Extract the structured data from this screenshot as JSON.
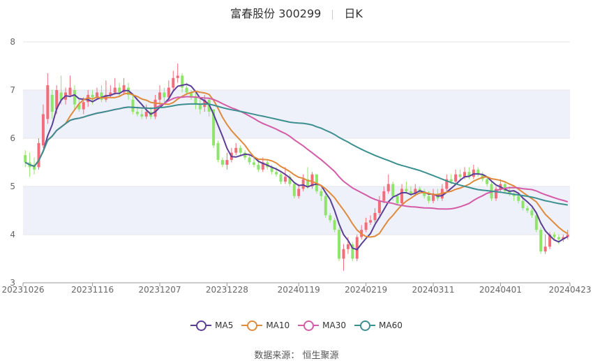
{
  "title": {
    "name": "富春股份 300299",
    "period": "日K"
  },
  "source": "数据来源：  恒生聚源",
  "legend": [
    {
      "label": "MA5",
      "color": "#5b3e96"
    },
    {
      "label": "MA10",
      "color": "#e08a3c"
    },
    {
      "label": "MA30",
      "color": "#d45ca6"
    },
    {
      "label": "MA60",
      "color": "#3c8f8f"
    }
  ],
  "colors": {
    "up": "#f26d78",
    "down": "#8fe56a",
    "band": "#eef0fa",
    "grid": "#e4e4ea"
  },
  "chart_data": {
    "type": "candlestick",
    "ylim": [
      3,
      8
    ],
    "yticks": [
      3,
      4,
      5,
      6,
      7,
      8
    ],
    "xticks": [
      {
        "label": "20231026",
        "index": 0
      },
      {
        "label": "20231116",
        "index": 15
      },
      {
        "label": "20231207",
        "index": 30
      },
      {
        "label": "20231228",
        "index": 45
      },
      {
        "label": "20240119",
        "index": 61
      },
      {
        "label": "20240219",
        "index": 76
      },
      {
        "label": "20240311",
        "index": 91
      },
      {
        "label": "20240401",
        "index": 106
      },
      {
        "label": "20240423",
        "index": 121
      }
    ],
    "candles": [
      [
        5.65,
        5.5,
        5.75,
        5.4
      ],
      [
        5.5,
        5.4,
        5.7,
        5.2
      ],
      [
        5.45,
        5.35,
        5.6,
        5.25
      ],
      [
        5.4,
        5.9,
        6.0,
        5.35
      ],
      [
        5.85,
        6.5,
        6.7,
        5.8
      ],
      [
        6.4,
        7.1,
        7.35,
        6.3
      ],
      [
        6.9,
        6.55,
        7.0,
        6.4
      ],
      [
        6.6,
        7.0,
        7.1,
        6.5
      ],
      [
        6.95,
        6.8,
        7.3,
        6.7
      ],
      [
        6.8,
        6.95,
        7.05,
        6.7
      ],
      [
        6.9,
        7.05,
        7.3,
        6.85
      ],
      [
        7.0,
        6.7,
        7.1,
        6.6
      ],
      [
        6.7,
        6.6,
        6.8,
        6.55
      ],
      [
        6.6,
        6.75,
        6.85,
        6.5
      ],
      [
        6.75,
        6.9,
        7.0,
        6.65
      ],
      [
        6.9,
        6.85,
        7.0,
        6.7
      ],
      [
        6.85,
        6.95,
        7.05,
        6.8
      ],
      [
        6.95,
        6.8,
        7.1,
        6.75
      ],
      [
        6.8,
        6.9,
        7.2,
        6.75
      ],
      [
        6.9,
        6.95,
        7.1,
        6.85
      ],
      [
        6.95,
        7.05,
        7.25,
        6.9
      ],
      [
        7.05,
        6.95,
        7.15,
        6.85
      ],
      [
        6.95,
        7.1,
        7.25,
        6.9
      ],
      [
        7.05,
        6.9,
        7.15,
        6.8
      ],
      [
        6.8,
        6.55,
        6.9,
        6.5
      ],
      [
        6.55,
        6.5,
        6.65,
        6.45
      ],
      [
        6.5,
        6.45,
        6.6,
        6.4
      ],
      [
        6.45,
        6.55,
        6.7,
        6.4
      ],
      [
        6.55,
        6.45,
        6.65,
        6.4
      ],
      [
        6.45,
        6.8,
        6.9,
        6.4
      ],
      [
        6.8,
        6.95,
        7.1,
        6.7
      ],
      [
        6.95,
        6.85,
        7.05,
        6.75
      ],
      [
        6.85,
        7.05,
        7.2,
        6.8
      ],
      [
        7.05,
        7.25,
        7.4,
        7.0
      ],
      [
        7.25,
        7.3,
        7.55,
        7.15
      ],
      [
        7.3,
        7.05,
        7.35,
        6.95
      ],
      [
        7.05,
        6.95,
        7.15,
        6.9
      ],
      [
        6.95,
        6.85,
        7.0,
        6.8
      ],
      [
        6.85,
        6.7,
        6.95,
        6.6
      ],
      [
        6.7,
        6.6,
        6.8,
        6.5
      ],
      [
        6.65,
        6.8,
        6.9,
        6.55
      ],
      [
        6.8,
        6.55,
        6.85,
        6.45
      ],
      [
        6.6,
        5.85,
        6.6,
        5.8
      ],
      [
        5.9,
        5.55,
        5.95,
        5.5
      ],
      [
        5.55,
        5.45,
        5.6,
        5.4
      ],
      [
        5.45,
        5.55,
        5.7,
        5.35
      ],
      [
        5.55,
        5.7,
        5.8,
        5.5
      ],
      [
        5.7,
        5.8,
        5.9,
        5.65
      ],
      [
        5.8,
        5.7,
        5.85,
        5.65
      ],
      [
        5.7,
        5.6,
        5.75,
        5.55
      ],
      [
        5.6,
        5.5,
        5.65,
        5.45
      ],
      [
        5.5,
        5.45,
        5.6,
        5.4
      ],
      [
        5.45,
        5.35,
        5.55,
        5.3
      ],
      [
        5.35,
        5.5,
        5.6,
        5.3
      ],
      [
        5.5,
        5.4,
        5.55,
        5.35
      ],
      [
        5.4,
        5.3,
        5.45,
        5.25
      ],
      [
        5.3,
        5.25,
        5.4,
        5.2
      ],
      [
        5.25,
        5.1,
        5.3,
        5.05
      ],
      [
        5.1,
        5.2,
        5.4,
        5.05
      ],
      [
        5.2,
        5.05,
        5.25,
        5.0
      ],
      [
        5.05,
        4.8,
        5.1,
        4.75
      ],
      [
        4.8,
        4.95,
        5.05,
        4.75
      ],
      [
        4.95,
        5.15,
        5.25,
        4.9
      ],
      [
        5.15,
        5.0,
        5.4,
        4.95
      ],
      [
        5.0,
        5.25,
        5.3,
        4.95
      ],
      [
        5.25,
        4.9,
        5.25,
        4.85
      ],
      [
        4.9,
        4.8,
        4.95,
        4.7
      ],
      [
        4.8,
        4.4,
        4.85,
        4.35
      ],
      [
        4.4,
        4.3,
        4.45,
        4.25
      ],
      [
        4.3,
        4.1,
        4.35,
        4.05
      ],
      [
        4.1,
        3.5,
        4.15,
        3.45
      ],
      [
        3.5,
        3.7,
        3.8,
        3.25
      ],
      [
        3.7,
        3.8,
        3.95,
        3.6
      ],
      [
        3.8,
        3.5,
        3.85,
        3.45
      ],
      [
        3.5,
        3.95,
        4.0,
        3.45
      ],
      [
        3.95,
        4.1,
        4.2,
        3.9
      ],
      [
        4.1,
        4.25,
        4.35,
        4.05
      ],
      [
        4.25,
        4.3,
        4.4,
        4.2
      ],
      [
        4.3,
        4.45,
        4.55,
        4.25
      ],
      [
        4.45,
        4.7,
        4.8,
        4.4
      ],
      [
        4.7,
        4.9,
        5.0,
        4.65
      ],
      [
        4.9,
        5.05,
        5.25,
        4.85
      ],
      [
        5.05,
        4.8,
        5.1,
        4.7
      ],
      [
        4.8,
        4.65,
        4.85,
        4.6
      ],
      [
        4.65,
        4.95,
        5.05,
        4.6
      ],
      [
        4.95,
        4.9,
        5.1,
        4.85
      ],
      [
        4.9,
        4.85,
        5.0,
        4.8
      ],
      [
        4.85,
        4.95,
        5.05,
        4.8
      ],
      [
        4.95,
        4.9,
        5.0,
        4.85
      ],
      [
        4.9,
        4.8,
        4.95,
        4.75
      ],
      [
        4.8,
        4.7,
        4.9,
        4.65
      ],
      [
        4.7,
        4.85,
        4.95,
        4.65
      ],
      [
        4.85,
        4.75,
        4.95,
        4.7
      ],
      [
        4.75,
        4.95,
        5.05,
        4.7
      ],
      [
        4.95,
        5.15,
        5.25,
        4.9
      ],
      [
        5.15,
        5.1,
        5.25,
        5.05
      ],
      [
        5.1,
        5.25,
        5.35,
        5.05
      ],
      [
        5.25,
        5.2,
        5.35,
        5.1
      ],
      [
        5.2,
        5.3,
        5.4,
        5.15
      ],
      [
        5.3,
        5.2,
        5.4,
        5.15
      ],
      [
        5.2,
        5.35,
        5.45,
        5.15
      ],
      [
        5.35,
        5.25,
        5.4,
        5.2
      ],
      [
        5.25,
        5.15,
        5.3,
        5.1
      ],
      [
        5.15,
        5.05,
        5.2,
        5.0
      ],
      [
        5.05,
        4.75,
        5.1,
        4.7
      ],
      [
        4.75,
        4.95,
        5.0,
        4.7
      ],
      [
        4.95,
        5.05,
        5.15,
        4.9
      ],
      [
        5.05,
        4.9,
        5.1,
        4.85
      ],
      [
        4.9,
        4.85,
        5.0,
        4.8
      ],
      [
        4.85,
        4.8,
        4.9,
        4.7
      ],
      [
        4.8,
        4.7,
        4.85,
        4.65
      ],
      [
        4.7,
        4.55,
        4.75,
        4.5
      ],
      [
        4.55,
        4.5,
        4.6,
        4.45
      ],
      [
        4.5,
        4.4,
        4.55,
        4.35
      ],
      [
        4.4,
        4.1,
        4.45,
        4.05
      ],
      [
        4.1,
        3.65,
        4.15,
        3.6
      ],
      [
        3.65,
        3.75,
        4.0,
        3.6
      ],
      [
        3.75,
        4.0,
        4.05,
        3.7
      ],
      [
        4.0,
        3.95,
        4.05,
        3.9
      ],
      [
        3.95,
        3.9,
        4.0,
        3.8
      ],
      [
        3.9,
        3.95,
        4.0,
        3.85
      ],
      [
        3.95,
        4.0,
        4.1,
        3.9
      ]
    ]
  }
}
